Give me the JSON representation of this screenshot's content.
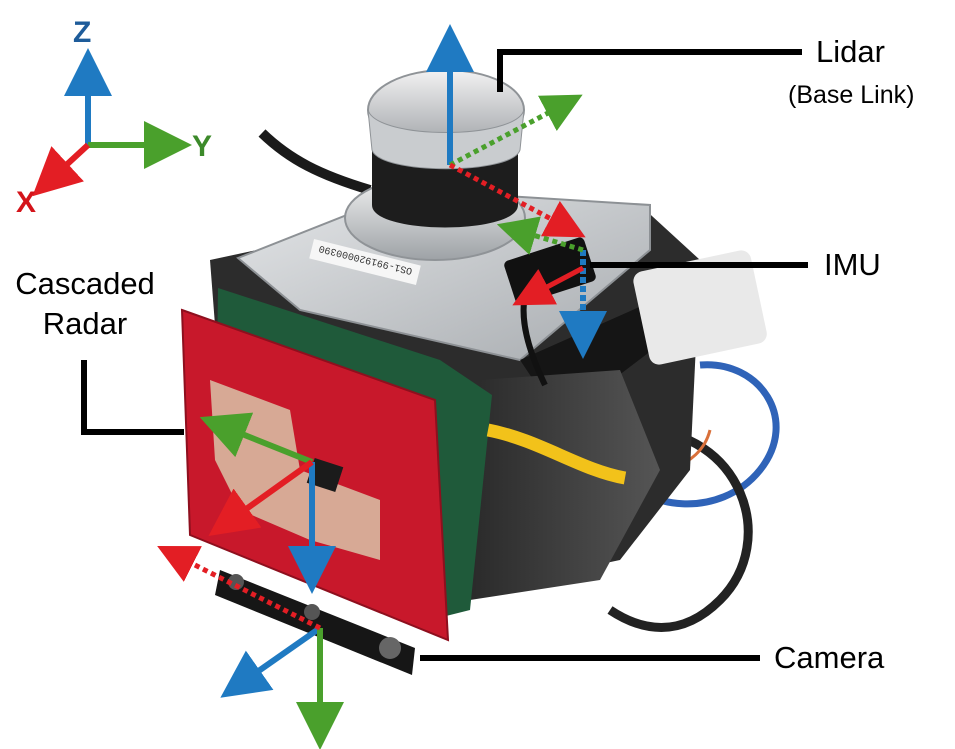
{
  "legend_axes": {
    "z_label": "Z",
    "y_label": "Y",
    "x_label": "X"
  },
  "labels": {
    "lidar": "Lidar",
    "lidar_sub": "(Base Link)",
    "imu": "IMU",
    "radar_line1": "Cascaded",
    "radar_line2": "Radar",
    "camera": "Camera"
  },
  "colors": {
    "x_axis": "#e31e24",
    "y_axis": "#4aa02c",
    "z_axis": "#1f7ac2",
    "x_letter": "#d4141a",
    "y_letter": "#3c8a2a",
    "z_letter": "#1e5c9a",
    "callout": "#000000",
    "radar_pcb": "#c8182b",
    "pcb_green": "#1f5a3a",
    "metal": "#b9bcbf",
    "dark": "#1b1b1b"
  },
  "device_text": {
    "lidar_serial": "OS1-991920000390"
  }
}
